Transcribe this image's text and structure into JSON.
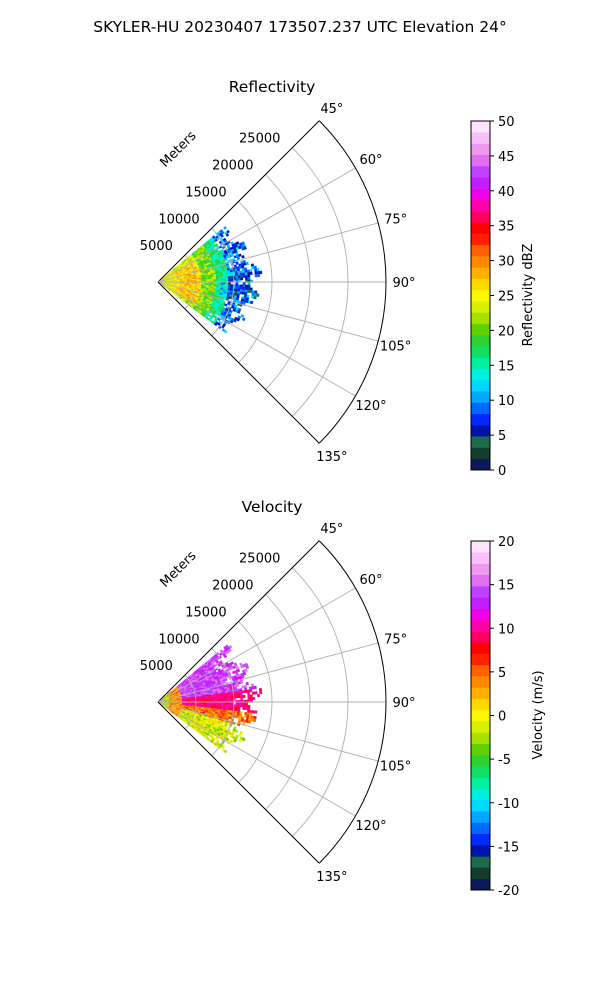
{
  "figure": {
    "suptitle": "SKYLER-HU  20230407  173507.237 UTC Elevation 24°"
  },
  "chart_data": [
    {
      "type": "heatmap",
      "title": "Reflectivity",
      "projection": "polar-sector",
      "angle_range_deg": [
        45,
        135
      ],
      "angle_ticks": [
        "45°",
        "60°",
        "75°",
        "90°",
        "105°",
        "120°",
        "135°"
      ],
      "radial_label": "Meters",
      "radial_ticks": [
        "5000",
        "10000",
        "15000",
        "20000",
        "25000"
      ],
      "radial_range_m": [
        0,
        30000
      ],
      "grid": true,
      "data_extent_m": 13000,
      "field_description": "rings of 25-30 dBZ near radar, 15-22 dBZ mid-range, 5-12 dBZ at outer edge",
      "colorbar": {
        "label": "Reflectivity dBZ",
        "range": [
          0,
          50
        ],
        "ticks": [
          "0",
          "5",
          "10",
          "15",
          "20",
          "25",
          "30",
          "35",
          "40",
          "45",
          "50"
        ],
        "colors": [
          "#0a1a5c",
          "#123c2c",
          "#1d6b4a",
          "#0012a8",
          "#0028ff",
          "#0068ff",
          "#00a8ff",
          "#00d8ff",
          "#00f0e0",
          "#00f0a0",
          "#10e060",
          "#30d030",
          "#60d000",
          "#a8e000",
          "#d8f000",
          "#f8f800",
          "#ffd800",
          "#ffb000",
          "#ff8800",
          "#ff6000",
          "#ff2000",
          "#ff0000",
          "#ff0060",
          "#ff00a8",
          "#f000e8",
          "#c020ff",
          "#c040ff",
          "#e070f0",
          "#f098f0",
          "#f8c0f8",
          "#fde4fc"
        ]
      }
    },
    {
      "type": "heatmap",
      "title": "Velocity",
      "projection": "polar-sector",
      "angle_range_deg": [
        45,
        135
      ],
      "angle_ticks": [
        "45°",
        "60°",
        "75°",
        "90°",
        "105°",
        "120°",
        "135°"
      ],
      "radial_label": "Meters",
      "radial_ticks": [
        "5000",
        "10000",
        "15000",
        "20000",
        "25000"
      ],
      "radial_range_m": [
        0,
        30000
      ],
      "grid": true,
      "data_extent_m": 13000,
      "field_description": "magenta 12-16 m/s toward 60-85°, red 8-11 m/s near 90°, yellow/orange 0-5 m/s toward 100-110°, green near radar",
      "colorbar": {
        "label": "Velocity (m/s)",
        "range": [
          -20,
          20
        ],
        "ticks": [
          "-20",
          "-15",
          "-10",
          "-5",
          "0",
          "5",
          "10",
          "15",
          "20"
        ],
        "colors": [
          "#0a1a5c",
          "#123c2c",
          "#1d6b4a",
          "#0012a8",
          "#0028ff",
          "#0068ff",
          "#00a8ff",
          "#00d8ff",
          "#00f0e0",
          "#00f0a0",
          "#10e060",
          "#30d030",
          "#60d000",
          "#a8e000",
          "#d8f000",
          "#f8f800",
          "#ffd800",
          "#ffb000",
          "#ff8800",
          "#ff6000",
          "#ff2000",
          "#ff0000",
          "#ff0060",
          "#ff00a8",
          "#f000e8",
          "#c020ff",
          "#c040ff",
          "#e070f0",
          "#f098f0",
          "#f8c0f8",
          "#fde4fc"
        ]
      }
    }
  ]
}
